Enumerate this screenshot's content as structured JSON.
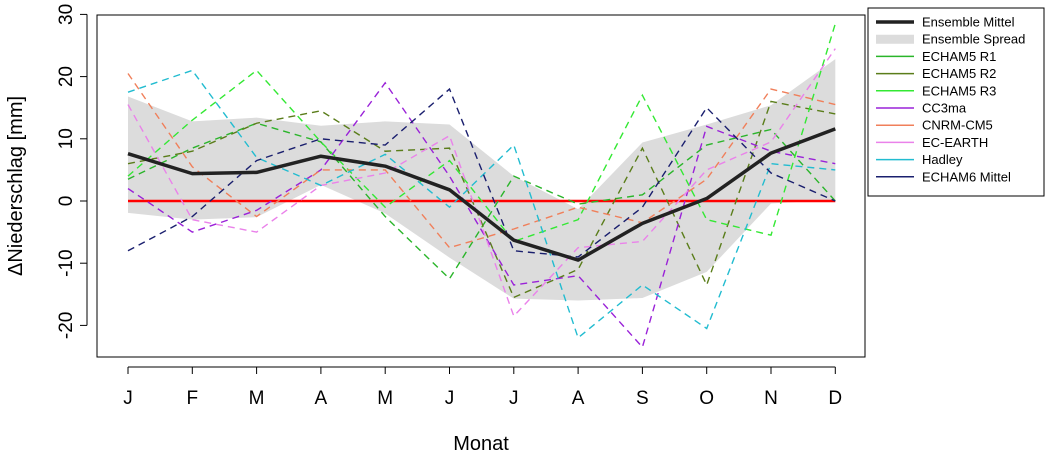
{
  "chart_data": {
    "type": "line",
    "xlabel": "Monat",
    "ylabel": "ΔNiederschlag [mm]",
    "categories": [
      "J",
      "F",
      "M",
      "A",
      "M",
      "J",
      "J",
      "A",
      "S",
      "O",
      "N",
      "D"
    ],
    "ylim": [
      -25,
      30
    ],
    "yticks": [
      -20,
      -10,
      0,
      10,
      20,
      30
    ],
    "legend_position": "outside-right",
    "reference_line": {
      "y": 0,
      "color": "#ff0000"
    },
    "ensemble_mean": {
      "name": "Ensemble Mittel",
      "color": "#222222",
      "values": [
        7.6,
        4.4,
        4.6,
        7.2,
        5.6,
        1.8,
        -6.3,
        -9.5,
        -3.6,
        0.4,
        7.7,
        11.6
      ]
    },
    "ensemble_spread": {
      "name": "Ensemble Spread",
      "color": "#dcdcdc",
      "upper": [
        16.8,
        12.8,
        13.4,
        12.1,
        12.8,
        12.3,
        4.0,
        -1.3,
        9.4,
        12.3,
        15.4,
        22.8
      ],
      "lower": [
        -1.9,
        -3.0,
        -2.6,
        2.6,
        -2.0,
        -9.1,
        -15.7,
        -16.0,
        -15.6,
        -11.4,
        -0.4,
        0.2
      ]
    },
    "series": [
      {
        "name": "ECHAM5 R1",
        "color": "#2ab52a",
        "values": [
          3.5,
          8.5,
          12.5,
          9.5,
          -2.5,
          -12.5,
          4.0,
          -0.5,
          1.0,
          9.0,
          11.5,
          0.0
        ]
      },
      {
        "name": "ECHAM5 R2",
        "color": "#5a7d1a",
        "values": [
          6.0,
          8.0,
          12.5,
          14.5,
          8.0,
          8.5,
          -15.5,
          -11.0,
          8.5,
          -13.5,
          16.0,
          14.0
        ]
      },
      {
        "name": "ECHAM5 R3",
        "color": "#33e833",
        "values": [
          4.0,
          13.0,
          21.0,
          9.5,
          -1.0,
          6.5,
          -6.5,
          -3.0,
          17.0,
          -3.0,
          -5.5,
          28.5
        ]
      },
      {
        "name": "CC3ma",
        "color": "#9a22d8",
        "values": [
          2.0,
          -5.0,
          -1.5,
          5.0,
          19.0,
          4.0,
          -13.5,
          -12.0,
          -23.5,
          12.0,
          8.0,
          6.0
        ]
      },
      {
        "name": "CNRM-CM5",
        "color": "#f07f5a",
        "values": [
          20.5,
          5.5,
          -2.5,
          5.0,
          5.0,
          -7.5,
          -4.5,
          -1.0,
          -3.5,
          3.5,
          18.0,
          15.5
        ]
      },
      {
        "name": "EC-EARTH",
        "color": "#ea82ea",
        "values": [
          15.5,
          -3.0,
          -5.0,
          2.5,
          4.5,
          10.5,
          -18.5,
          -7.5,
          -6.5,
          5.0,
          9.5,
          24.5
        ]
      },
      {
        "name": "Hadley",
        "color": "#22bcd0",
        "values": [
          17.5,
          21.0,
          7.0,
          2.5,
          7.5,
          -1.0,
          9.0,
          -22.0,
          -13.5,
          -20.5,
          6.0,
          5.0
        ]
      },
      {
        "name": "ECHAM6 Mittel",
        "color": "#1a1f6e",
        "values": [
          -8.0,
          -2.5,
          6.5,
          10.0,
          9.0,
          18.0,
          -8.0,
          -9.0,
          -1.0,
          15.0,
          4.5,
          0.0
        ]
      }
    ]
  }
}
